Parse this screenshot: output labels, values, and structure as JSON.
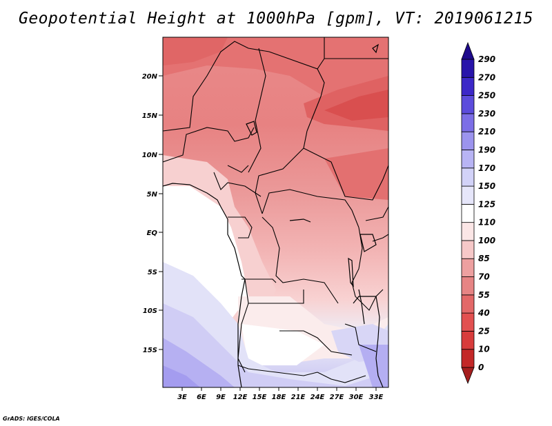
{
  "title": "Geopotential Height at 1000hPa [gpm], VT: 2019061215",
  "credit": "GrADS: IGES/COLA",
  "map": {
    "lon_range": [
      0,
      35
    ],
    "lat_range": [
      -20,
      25
    ],
    "lat_ticks": [
      "20N",
      "15N",
      "10N",
      "5N",
      "EQ",
      "5S",
      "10S",
      "15S"
    ],
    "lon_ticks": [
      "3E",
      "6E",
      "9E",
      "12E",
      "15E",
      "18E",
      "21E",
      "24E",
      "27E",
      "30E",
      "33E"
    ]
  },
  "colorbar": {
    "levels": [
      "0",
      "10",
      "25",
      "40",
      "55",
      "70",
      "85",
      "100",
      "110",
      "125",
      "150",
      "170",
      "190",
      "210",
      "230",
      "250",
      "270",
      "290"
    ],
    "colors": [
      "#a51e1e",
      "#c32828",
      "#d83c3c",
      "#e25050",
      "#e36868",
      "#e68484",
      "#eda0a0",
      "#f6c8c8",
      "#fbe6e6",
      "#ffffff",
      "#e6e6fa",
      "#d2d2f8",
      "#b8b4f4",
      "#9c94ee",
      "#7c6ee6",
      "#5c4cdc",
      "#3c28c8",
      "#2814aa",
      "#1e0a8c"
    ]
  }
}
